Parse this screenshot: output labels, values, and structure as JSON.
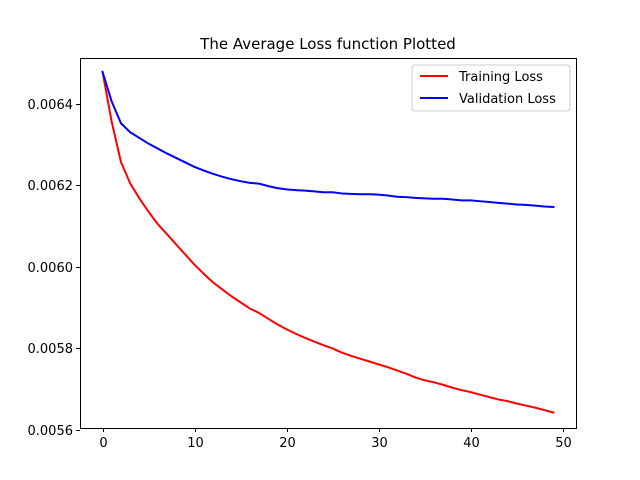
{
  "chart_data": {
    "type": "line",
    "title": "The Average Loss function Plotted",
    "xlabel": "",
    "ylabel": "",
    "xlim": [
      -2.45,
      51.45
    ],
    "ylim": [
      0.005605,
      0.006512
    ],
    "xticks": [
      0,
      10,
      20,
      30,
      40,
      50
    ],
    "xtick_labels": [
      "0",
      "10",
      "20",
      "30",
      "40",
      "50"
    ],
    "yticks": [
      0.0056,
      0.0058,
      0.006,
      0.0062,
      0.0064
    ],
    "ytick_labels": [
      "0.0056",
      "0.0058",
      "0.0060",
      "0.0062",
      "0.0064"
    ],
    "grid": false,
    "legend_position": "upper right",
    "x": [
      0,
      1,
      2,
      3,
      4,
      5,
      6,
      7,
      8,
      9,
      10,
      11,
      12,
      13,
      14,
      15,
      16,
      17,
      18,
      19,
      20,
      21,
      22,
      23,
      24,
      25,
      26,
      27,
      28,
      29,
      30,
      31,
      32,
      33,
      34,
      35,
      36,
      37,
      38,
      39,
      40,
      41,
      42,
      43,
      44,
      45,
      46,
      47,
      48,
      49
    ],
    "series": [
      {
        "name": "Training Loss",
        "color": "#ff0000",
        "values": [
          0.006478,
          0.006355,
          0.006257,
          0.006205,
          0.006168,
          0.006135,
          0.006105,
          0.00608,
          0.006055,
          0.00603,
          0.006005,
          0.005983,
          0.005962,
          0.005945,
          0.005928,
          0.005913,
          0.005898,
          0.005887,
          0.005873,
          0.005859,
          0.005847,
          0.005836,
          0.005826,
          0.005817,
          0.005808,
          0.0058,
          0.00579,
          0.005782,
          0.005775,
          0.005768,
          0.005761,
          0.005754,
          0.005746,
          0.005738,
          0.005729,
          0.005722,
          0.005717,
          0.005711,
          0.005704,
          0.005698,
          0.005693,
          0.005687,
          0.005681,
          0.005675,
          0.005671,
          0.005665,
          0.00566,
          0.005655,
          0.005649,
          0.005643
        ]
      },
      {
        "name": "Validation Loss",
        "color": "#0000ff",
        "values": [
          0.006478,
          0.006405,
          0.006352,
          0.00633,
          0.006316,
          0.006302,
          0.00629,
          0.006278,
          0.006267,
          0.006256,
          0.006245,
          0.006236,
          0.006228,
          0.006221,
          0.006215,
          0.00621,
          0.006206,
          0.006204,
          0.006198,
          0.006193,
          0.00619,
          0.006188,
          0.006187,
          0.006185,
          0.006183,
          0.006183,
          0.00618,
          0.006179,
          0.006178,
          0.006178,
          0.006177,
          0.006175,
          0.006172,
          0.006171,
          0.006169,
          0.006168,
          0.006167,
          0.006167,
          0.006165,
          0.006163,
          0.006163,
          0.006161,
          0.006159,
          0.006157,
          0.006155,
          0.006153,
          0.006152,
          0.00615,
          0.006148,
          0.006147
        ]
      }
    ]
  }
}
